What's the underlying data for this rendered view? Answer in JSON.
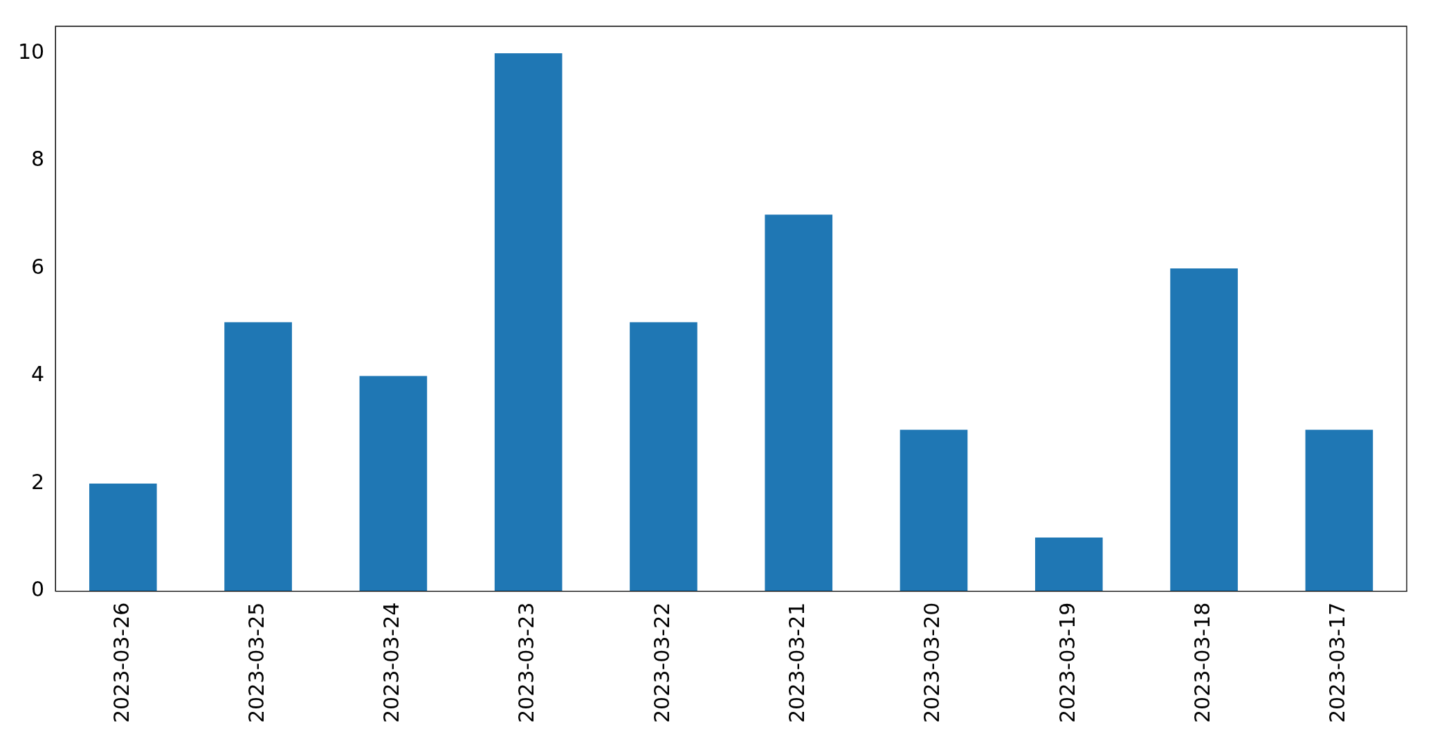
{
  "chart_data": {
    "type": "bar",
    "categories": [
      "2023-03-26",
      "2023-03-25",
      "2023-03-24",
      "2023-03-23",
      "2023-03-22",
      "2023-03-21",
      "2023-03-20",
      "2023-03-19",
      "2023-03-18",
      "2023-03-17"
    ],
    "values": [
      2,
      5,
      4,
      10,
      5,
      7,
      3,
      1,
      6,
      3
    ],
    "color": "#1f77b4",
    "ylim": [
      0,
      10.5
    ],
    "yticks": [
      0,
      2,
      4,
      6,
      8,
      10
    ],
    "grid": false,
    "legend": false
  }
}
